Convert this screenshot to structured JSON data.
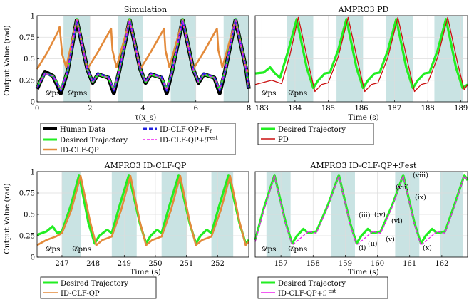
{
  "colors": {
    "human": "#000000",
    "desired": "#22ee22",
    "idclf": "#e38a3a",
    "idclf_ff": "#2222dd",
    "idclf_est": "#ee22ee",
    "pd": "#cc1111",
    "phase_shade": "#c9e3e3",
    "grid": "#dddddd"
  },
  "chart_data": [
    {
      "type": "line",
      "title": "Simulation",
      "xlabel": "τ(x_s)",
      "ylabel": "Output Value (rad)",
      "xlim": [
        0,
        8
      ],
      "ylim": [
        0,
        1
      ],
      "x_ticks": [
        "0",
        "2",
        "4",
        "6",
        "8"
      ],
      "y_ticks": [
        "0",
        "0.25",
        "0.5",
        "0.75",
        "1"
      ],
      "grid": true,
      "phase_labels": [
        "𝒟ps",
        "𝒟pns"
      ],
      "shaded_x": [
        [
          1.0,
          2.0
        ],
        [
          3.05,
          4.0
        ],
        [
          5.05,
          6.0
        ],
        [
          7.05,
          8.0
        ]
      ],
      "series": [
        {
          "name": "Human Data",
          "x": [
            0,
            0.3,
            0.6,
            0.9,
            1.15,
            1.5,
            1.9,
            2.1,
            2.3,
            2.7,
            2.9,
            3.1,
            3.5,
            3.9,
            4.1,
            4.3,
            4.7,
            4.9,
            5.1,
            5.5,
            5.9,
            6.1,
            6.3,
            6.7,
            6.9,
            7.1,
            7.5,
            7.9,
            8.0
          ],
          "y": [
            0.15,
            0.35,
            0.3,
            0.1,
            0.35,
            0.95,
            0.38,
            0.22,
            0.32,
            0.28,
            0.1,
            0.35,
            0.95,
            0.38,
            0.22,
            0.32,
            0.28,
            0.1,
            0.35,
            0.95,
            0.38,
            0.22,
            0.32,
            0.28,
            0.1,
            0.35,
            0.95,
            0.38,
            0.15
          ]
        },
        {
          "name": "Desired Trajectory",
          "x": [
            0,
            0.3,
            0.6,
            0.9,
            1.15,
            1.5,
            1.9,
            2.1,
            2.3,
            2.7,
            2.9,
            3.1,
            3.5,
            3.9,
            4.1,
            4.3,
            4.7,
            4.9,
            5.1,
            5.5,
            5.9,
            6.1,
            6.3,
            6.7,
            6.9,
            7.1,
            7.5,
            7.9,
            8.0
          ],
          "y": [
            0.17,
            0.33,
            0.3,
            0.14,
            0.35,
            0.96,
            0.38,
            0.23,
            0.32,
            0.28,
            0.14,
            0.35,
            0.96,
            0.38,
            0.23,
            0.32,
            0.28,
            0.14,
            0.35,
            0.96,
            0.38,
            0.23,
            0.32,
            0.28,
            0.14,
            0.35,
            0.96,
            0.38,
            0.17
          ]
        },
        {
          "name": "ID-CLF-QP",
          "x": [
            0,
            0.4,
            0.8,
            0.85,
            0.95,
            1.1,
            1.5,
            1.9,
            2.3,
            2.8,
            2.85,
            3.0,
            3.5,
            3.9,
            4.3,
            4.8,
            4.85,
            5.0,
            5.5,
            5.9,
            6.3,
            6.8,
            6.85,
            7.0,
            7.5,
            7.9,
            8.0
          ],
          "y": [
            0.38,
            0.58,
            0.82,
            0.87,
            0.55,
            0.4,
            0.95,
            0.38,
            0.58,
            0.85,
            0.6,
            0.4,
            0.95,
            0.38,
            0.58,
            0.85,
            0.6,
            0.4,
            0.95,
            0.38,
            0.58,
            0.85,
            0.6,
            0.4,
            0.95,
            0.38,
            0.35
          ]
        },
        {
          "name": "ID-CLF-QP+F_f",
          "x": [
            0,
            0.3,
            0.6,
            0.9,
            1.15,
            1.5,
            1.9,
            2.1,
            2.3,
            2.7,
            2.9,
            3.1,
            3.5,
            3.9,
            4.1,
            4.3,
            4.7,
            4.9,
            5.1,
            5.5,
            5.9,
            6.1,
            6.3,
            6.7,
            6.9,
            7.1,
            7.5,
            7.9,
            8.0
          ],
          "y": [
            0.16,
            0.33,
            0.3,
            0.13,
            0.35,
            0.95,
            0.38,
            0.23,
            0.33,
            0.29,
            0.13,
            0.35,
            0.95,
            0.38,
            0.23,
            0.33,
            0.29,
            0.13,
            0.35,
            0.95,
            0.38,
            0.23,
            0.33,
            0.29,
            0.13,
            0.35,
            0.95,
            0.38,
            0.16
          ]
        },
        {
          "name": "ID-CLF-QP+ℱest",
          "x": [
            0,
            0.3,
            0.6,
            0.9,
            1.15,
            1.5,
            1.9,
            2.1,
            2.3,
            2.7,
            2.9,
            3.1,
            3.5,
            3.9,
            4.1,
            4.3,
            4.7,
            4.9,
            5.1,
            5.5,
            5.9,
            6.1,
            6.3,
            6.7,
            6.9,
            7.1,
            7.5,
            7.9,
            8.0
          ],
          "y": [
            0.17,
            0.33,
            0.3,
            0.14,
            0.35,
            0.95,
            0.38,
            0.23,
            0.32,
            0.28,
            0.14,
            0.35,
            0.95,
            0.38,
            0.23,
            0.32,
            0.28,
            0.14,
            0.35,
            0.95,
            0.38,
            0.23,
            0.32,
            0.28,
            0.14,
            0.35,
            0.95,
            0.38,
            0.17
          ]
        }
      ]
    },
    {
      "type": "line",
      "title": "AMPRO3 PD",
      "xlabel": "Time (s)",
      "ylabel": "",
      "xlim": [
        182.8,
        189.2
      ],
      "ylim": [
        0,
        1
      ],
      "x_ticks": [
        "183",
        "184",
        "185",
        "186",
        "187",
        "188",
        "189"
      ],
      "grid": true,
      "phase_labels": [
        "𝒟ps",
        "𝒟pns"
      ],
      "shaded_x": [
        [
          183.75,
          184.55
        ],
        [
          185.25,
          186.05
        ],
        [
          186.75,
          187.55
        ],
        [
          188.2,
          189.05
        ]
      ],
      "series": [
        {
          "name": "Desired Trajectory",
          "x": [
            182.8,
            183.05,
            183.25,
            183.4,
            183.55,
            183.8,
            184.05,
            184.35,
            184.55,
            184.7,
            184.9,
            185.05,
            185.3,
            185.55,
            185.85,
            186.05,
            186.2,
            186.4,
            186.55,
            186.8,
            187.05,
            187.35,
            187.55,
            187.7,
            187.9,
            188.05,
            188.3,
            188.55,
            188.85,
            189.05,
            189.2
          ],
          "y": [
            0.33,
            0.34,
            0.4,
            0.33,
            0.28,
            0.6,
            0.96,
            0.4,
            0.16,
            0.25,
            0.33,
            0.34,
            0.6,
            0.96,
            0.4,
            0.16,
            0.25,
            0.33,
            0.34,
            0.6,
            0.96,
            0.4,
            0.16,
            0.25,
            0.33,
            0.34,
            0.6,
            0.96,
            0.4,
            0.16,
            0.2
          ]
        },
        {
          "name": "PD",
          "x": [
            182.8,
            183.0,
            183.3,
            183.6,
            183.85,
            184.1,
            184.4,
            184.6,
            184.8,
            185.0,
            185.3,
            185.6,
            185.9,
            186.1,
            186.3,
            186.5,
            186.8,
            187.1,
            187.4,
            187.6,
            187.8,
            188.0,
            188.3,
            188.6,
            188.9,
            189.1,
            189.2
          ],
          "y": [
            0.2,
            0.22,
            0.25,
            0.21,
            0.55,
            0.98,
            0.45,
            0.12,
            0.2,
            0.22,
            0.52,
            0.98,
            0.45,
            0.12,
            0.2,
            0.22,
            0.52,
            0.98,
            0.45,
            0.12,
            0.2,
            0.22,
            0.52,
            0.98,
            0.45,
            0.14,
            0.2
          ]
        }
      ]
    },
    {
      "type": "line",
      "title": "AMPRO3 ID-CLF-QP",
      "xlabel": "Time (s)",
      "ylabel": "Output Value (rad)",
      "xlim": [
        246.2,
        253.0
      ],
      "ylim": [
        0,
        1
      ],
      "x_ticks": [
        "247",
        "248",
        "249",
        "250",
        "251",
        "252"
      ],
      "y_ticks": [
        "0",
        "0.25",
        "0.5",
        "0.75",
        "1"
      ],
      "grid": true,
      "phase_labels": [
        "𝒟ps",
        "𝒟pns"
      ],
      "shaded_x": [
        [
          247.0,
          247.6
        ],
        [
          248.6,
          249.4
        ],
        [
          250.2,
          251.0
        ],
        [
          251.8,
          252.5
        ]
      ],
      "series": [
        {
          "name": "Desired Trajectory",
          "x": [
            246.2,
            246.5,
            246.7,
            246.85,
            247.0,
            247.3,
            247.55,
            247.85,
            248.05,
            248.2,
            248.45,
            248.6,
            248.85,
            249.15,
            249.5,
            249.7,
            249.85,
            250.05,
            250.2,
            250.45,
            250.75,
            251.1,
            251.3,
            251.45,
            251.65,
            251.8,
            252.05,
            252.35,
            252.7,
            252.9,
            253.0
          ],
          "y": [
            0.26,
            0.3,
            0.36,
            0.28,
            0.3,
            0.62,
            0.96,
            0.4,
            0.16,
            0.25,
            0.32,
            0.28,
            0.6,
            0.96,
            0.4,
            0.16,
            0.25,
            0.32,
            0.28,
            0.6,
            0.96,
            0.4,
            0.16,
            0.25,
            0.32,
            0.28,
            0.6,
            0.96,
            0.4,
            0.16,
            0.2
          ]
        },
        {
          "name": "ID-CLF-QP",
          "x": [
            246.2,
            246.5,
            246.8,
            247.0,
            247.3,
            247.6,
            247.9,
            248.1,
            248.3,
            248.6,
            248.9,
            249.2,
            249.5,
            249.7,
            249.9,
            250.2,
            250.5,
            250.8,
            251.1,
            251.3,
            251.5,
            251.8,
            252.1,
            252.4,
            252.7,
            252.9,
            253.0
          ],
          "y": [
            0.14,
            0.2,
            0.24,
            0.28,
            0.55,
            0.95,
            0.42,
            0.14,
            0.2,
            0.24,
            0.55,
            0.95,
            0.42,
            0.14,
            0.2,
            0.24,
            0.55,
            0.95,
            0.42,
            0.14,
            0.2,
            0.24,
            0.55,
            0.95,
            0.42,
            0.14,
            0.18
          ]
        }
      ]
    },
    {
      "type": "line",
      "title": "AMPRO3 ID-CLF-QP+ℱest",
      "xlabel": "Time (s)",
      "ylabel": "",
      "xlim": [
        156.2,
        162.8
      ],
      "ylim": [
        0,
        1
      ],
      "x_ticks": [
        "157",
        "158",
        "159",
        "160",
        "161",
        "162"
      ],
      "grid": true,
      "phase_labels": [
        "𝒟ps",
        "𝒟pns"
      ],
      "shaded_x": [
        [
          156.55,
          157.3
        ],
        [
          158.55,
          159.3
        ],
        [
          160.55,
          161.3
        ],
        [
          161.95,
          162.65
        ]
      ],
      "annotations": [
        "(i)",
        "(ii)",
        "(iii)",
        "(iv)",
        "(v)",
        "(vi)",
        "(vii)",
        "(viii)",
        "(ix)",
        "(x)"
      ],
      "series": [
        {
          "name": "Desired Trajectory",
          "x": [
            156.2,
            156.45,
            156.8,
            157.15,
            157.35,
            157.5,
            157.7,
            157.85,
            158.1,
            158.45,
            158.8,
            159.15,
            159.35,
            159.5,
            159.7,
            159.85,
            160.1,
            160.45,
            160.8,
            161.15,
            161.35,
            161.5,
            161.7,
            161.85,
            162.1,
            162.4,
            162.7,
            162.8
          ],
          "y": [
            0.2,
            0.55,
            0.96,
            0.4,
            0.16,
            0.25,
            0.33,
            0.28,
            0.3,
            0.6,
            0.96,
            0.4,
            0.16,
            0.25,
            0.33,
            0.28,
            0.3,
            0.6,
            0.96,
            0.4,
            0.16,
            0.25,
            0.33,
            0.28,
            0.3,
            0.62,
            0.96,
            0.9
          ]
        },
        {
          "name": "ID-CLF-QP+ℱest",
          "x": [
            156.2,
            156.45,
            156.8,
            157.15,
            157.35,
            157.6,
            157.85,
            158.1,
            158.45,
            158.8,
            159.15,
            159.35,
            159.6,
            159.85,
            160.1,
            160.45,
            160.8,
            161.15,
            161.35,
            161.6,
            161.85,
            162.1,
            162.4,
            162.7,
            162.8
          ],
          "y": [
            0.18,
            0.52,
            0.95,
            0.38,
            0.14,
            0.22,
            0.3,
            0.28,
            0.58,
            0.95,
            0.38,
            0.14,
            0.22,
            0.3,
            0.28,
            0.58,
            0.95,
            0.38,
            0.14,
            0.22,
            0.3,
            0.28,
            0.6,
            0.95,
            0.9
          ]
        }
      ]
    }
  ],
  "legends": {
    "sim": {
      "human": "Human Data",
      "desired": "Desired Trajectory",
      "idclf": "ID-CLF-QP",
      "idclf_ff": "ID-CLF-QP+F",
      "idclf_ff_sub": "f",
      "idclf_est": "ID-CLF-QP+ℱ",
      "idclf_est_sup": "est"
    },
    "pd": {
      "desired": "Desired Trajectory",
      "pd": "PD"
    },
    "idclf": {
      "desired": "Desired Trajectory",
      "idclf": "ID-CLF-QP"
    },
    "est": {
      "desired": "Desired Trajectory",
      "est": "ID-CLF-QP+ℱ",
      "est_sup": "est"
    }
  }
}
